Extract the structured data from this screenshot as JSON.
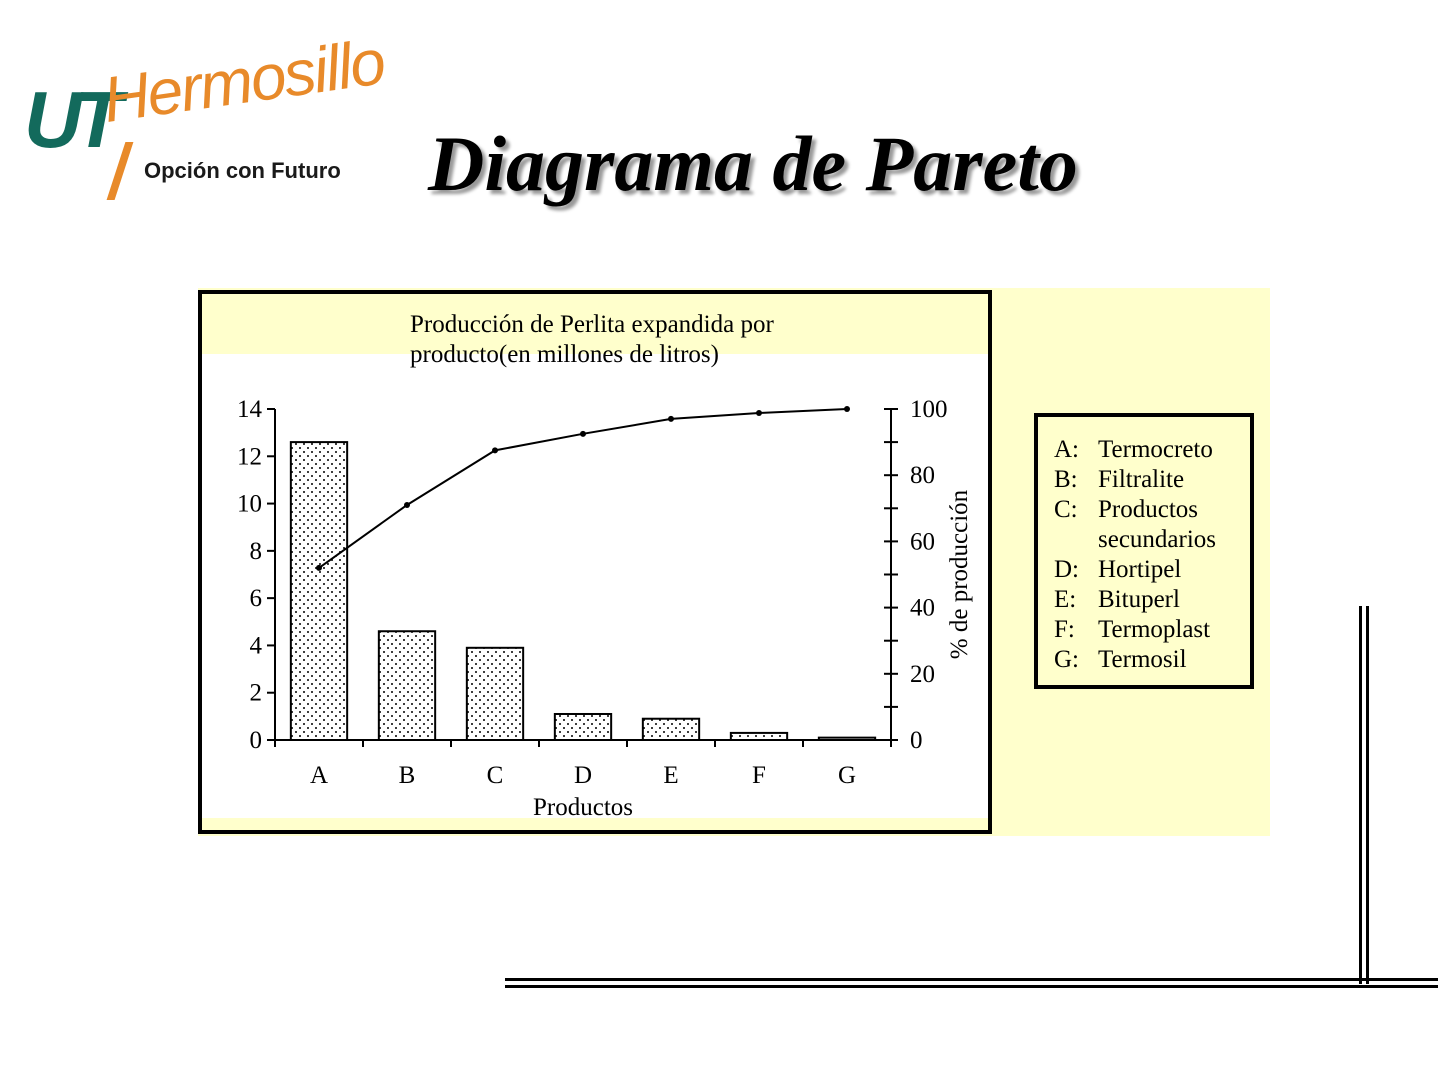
{
  "slide": {
    "title": "Diagrama de Pareto",
    "logo": {
      "brand": "Hermosillo",
      "mark": "UT",
      "slogan": "Opción con Futuro"
    }
  },
  "legend": {
    "items": [
      {
        "key": "A:",
        "name": "Termocreto"
      },
      {
        "key": "B:",
        "name": "Filtralite"
      },
      {
        "key": "C:",
        "name": "Productos secundarios"
      },
      {
        "key": "D:",
        "name": "Hortipel"
      },
      {
        "key": "E:",
        "name": "Bituperl"
      },
      {
        "key": "F:",
        "name": "Termoplast"
      },
      {
        "key": "G:",
        "name": "Termosil"
      }
    ]
  },
  "colors": {
    "panel_background": "#ffffcc",
    "logo_green": "#136a5c",
    "logo_orange": "#e88a2a"
  },
  "chart_data": {
    "type": "bar",
    "title": "Producción de Perlita expandida por producto(en millones de litros)",
    "xlabel": "Productos",
    "ylabel": "",
    "y2label": "% de producción",
    "categories": [
      "A",
      "B",
      "C",
      "D",
      "E",
      "F",
      "G"
    ],
    "series": [
      {
        "type": "bar",
        "values": [
          12.6,
          4.6,
          3.9,
          1.1,
          0.9,
          0.3,
          0.1
        ]
      },
      {
        "type": "line",
        "axis": "right",
        "values": [
          52,
          71,
          87.5,
          92.5,
          97,
          98.8,
          100
        ]
      }
    ],
    "ylim": [
      0,
      14
    ],
    "yticks": [
      0,
      2,
      4,
      6,
      8,
      10,
      12,
      14
    ],
    "y2lim": [
      0,
      100
    ],
    "y2ticks": [
      0,
      20,
      40,
      60,
      80,
      100
    ],
    "bar_fill": "dotted",
    "grid": false
  }
}
